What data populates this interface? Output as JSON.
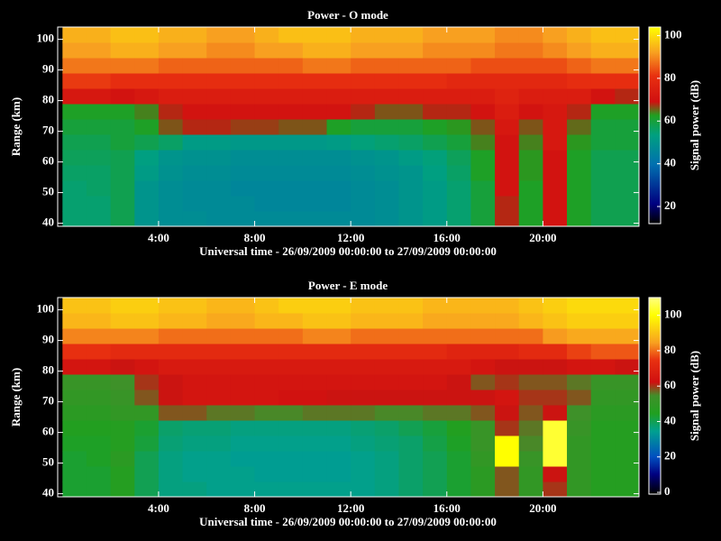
{
  "chart_data": [
    {
      "type": "heatmap",
      "title": "Power - O mode",
      "xlabel": "Universal time - 26/09/2009 00:00:00 to 27/09/2009 00:00:00",
      "ylabel": "Range (km)",
      "colorbar_label": "Signal power (dB)",
      "xlim": [
        -0.2,
        24
      ],
      "xticks": [
        {
          "value": 4,
          "label": "4:00"
        },
        {
          "value": 8,
          "label": "8:00"
        },
        {
          "value": 12,
          "label": "12:00"
        },
        {
          "value": 16,
          "label": "16:00"
        },
        {
          "value": 20,
          "label": "20:00"
        }
      ],
      "ylim": [
        39,
        104
      ],
      "yticks": [
        40,
        50,
        60,
        70,
        80,
        90,
        100
      ],
      "zlim": [
        12,
        104
      ],
      "zticks": [
        20,
        40,
        60,
        80,
        100
      ],
      "colorscale": [
        [
          0,
          "#000000"
        ],
        [
          0.1,
          "#000080"
        ],
        [
          0.3,
          "#0070b0"
        ],
        [
          0.45,
          "#00a080"
        ],
        [
          0.55,
          "#20a020"
        ],
        [
          0.62,
          "#d01010"
        ],
        [
          0.75,
          "#e83010"
        ],
        [
          0.87,
          "#f8a020"
        ],
        [
          1,
          "#ffff00"
        ]
      ],
      "x_edges": [
        0,
        1,
        2,
        3,
        4,
        5,
        6,
        7,
        8,
        9,
        10,
        11,
        12,
        13,
        14,
        15,
        16,
        17,
        18,
        19,
        20,
        21,
        22,
        23,
        24
      ],
      "y_edges": [
        39,
        44,
        49,
        54,
        59,
        64,
        69,
        74,
        79,
        84,
        89,
        94,
        99,
        104
      ],
      "z": [
        [
          55,
          55,
          58,
          50,
          48,
          48,
          47,
          47,
          47,
          47,
          47,
          47,
          47,
          48,
          50,
          52,
          55,
          60,
          68,
          62,
          70,
          62,
          58,
          58
        ],
        [
          55,
          55,
          58,
          50,
          48,
          47,
          47,
          47,
          46,
          46,
          46,
          46,
          47,
          48,
          50,
          52,
          55,
          60,
          68,
          62,
          70,
          62,
          58,
          58
        ],
        [
          55,
          56,
          58,
          50,
          48,
          47,
          47,
          46,
          46,
          46,
          46,
          46,
          47,
          48,
          50,
          52,
          55,
          60,
          70,
          62,
          70,
          62,
          58,
          58
        ],
        [
          56,
          56,
          58,
          52,
          49,
          48,
          48,
          47,
          47,
          47,
          47,
          47,
          48,
          49,
          50,
          53,
          56,
          62,
          70,
          63,
          70,
          62,
          58,
          58
        ],
        [
          57,
          57,
          58,
          53,
          50,
          49,
          49,
          48,
          48,
          48,
          48,
          48,
          49,
          50,
          52,
          54,
          57,
          62,
          70,
          63,
          70,
          62,
          58,
          58
        ],
        [
          58,
          58,
          60,
          58,
          56,
          52,
          52,
          51,
          51,
          51,
          51,
          52,
          54,
          55,
          56,
          58,
          60,
          64,
          70,
          64,
          72,
          63,
          60,
          60
        ],
        [
          60,
          60,
          60,
          62,
          66,
          68,
          68,
          67,
          67,
          66,
          66,
          62,
          60,
          60,
          60,
          62,
          63,
          66,
          72,
          66,
          72,
          65,
          60,
          60
        ],
        [
          62,
          62,
          62,
          64,
          68,
          70,
          70,
          70,
          70,
          70,
          70,
          70,
          68,
          66,
          66,
          68,
          68,
          70,
          74,
          70,
          72,
          68,
          62,
          62
        ],
        [
          72,
          72,
          70,
          72,
          74,
          74,
          74,
          74,
          74,
          74,
          74,
          74,
          74,
          74,
          74,
          74,
          74,
          74,
          76,
          74,
          74,
          74,
          70,
          68
        ],
        [
          82,
          82,
          80,
          80,
          80,
          80,
          80,
          80,
          80,
          80,
          80,
          80,
          80,
          80,
          80,
          80,
          78,
          78,
          78,
          78,
          78,
          80,
          80,
          80
        ],
        [
          88,
          88,
          88,
          88,
          86,
          86,
          86,
          86,
          86,
          86,
          88,
          88,
          86,
          86,
          86,
          86,
          86,
          84,
          84,
          84,
          84,
          86,
          88,
          88
        ],
        [
          92,
          92,
          94,
          94,
          92,
          92,
          90,
          90,
          92,
          92,
          94,
          94,
          92,
          92,
          92,
          90,
          90,
          90,
          88,
          88,
          90,
          92,
          94,
          94
        ],
        [
          94,
          94,
          96,
          96,
          94,
          94,
          92,
          92,
          94,
          96,
          96,
          96,
          94,
          94,
          94,
          92,
          92,
          92,
          90,
          90,
          92,
          94,
          96,
          96
        ]
      ]
    },
    {
      "type": "heatmap",
      "title": "Power - E mode",
      "xlabel": "Universal time - 26/09/2009 00:00:00 to 27/09/2009 00:00:00",
      "ylabel": "Range (km)",
      "colorbar_label": "Signal power (dB)",
      "xlim": [
        -0.2,
        24
      ],
      "xticks": [
        {
          "value": 4,
          "label": "4:00"
        },
        {
          "value": 8,
          "label": "8:00"
        },
        {
          "value": 12,
          "label": "12:00"
        },
        {
          "value": 16,
          "label": "16:00"
        },
        {
          "value": 20,
          "label": "20:00"
        }
      ],
      "ylim": [
        39,
        104
      ],
      "yticks": [
        40,
        50,
        60,
        70,
        80,
        90,
        100
      ],
      "zlim": [
        -1,
        110
      ],
      "zticks": [
        0,
        20,
        40,
        60,
        80,
        100
      ],
      "colorscale": [
        [
          0,
          "#000000"
        ],
        [
          0.1,
          "#000080"
        ],
        [
          0.19,
          "#0050c0"
        ],
        [
          0.32,
          "#00a090"
        ],
        [
          0.41,
          "#20a020"
        ],
        [
          0.5,
          "#40902a"
        ],
        [
          0.57,
          "#d01010"
        ],
        [
          0.68,
          "#e83010"
        ],
        [
          0.77,
          "#f8a020"
        ],
        [
          0.91,
          "#ffff00"
        ],
        [
          1,
          "#ffff80"
        ]
      ],
      "x_edges": [
        0,
        1,
        2,
        3,
        4,
        5,
        6,
        7,
        8,
        9,
        10,
        11,
        12,
        13,
        14,
        15,
        16,
        17,
        18,
        19,
        20,
        21,
        22,
        23,
        24
      ],
      "y_edges": [
        39,
        44,
        49,
        54,
        59,
        64,
        69,
        74,
        79,
        84,
        89,
        94,
        99,
        104
      ],
      "z": [
        [
          43,
          43,
          46,
          40,
          36,
          36,
          35,
          35,
          35,
          35,
          35,
          35,
          35,
          36,
          38,
          40,
          43,
          48,
          58,
          50,
          60,
          50,
          46,
          46
        ],
        [
          43,
          43,
          46,
          40,
          36,
          35,
          35,
          35,
          34,
          34,
          34,
          34,
          35,
          36,
          38,
          40,
          43,
          48,
          58,
          50,
          62,
          50,
          46,
          46
        ],
        [
          43,
          44,
          48,
          40,
          36,
          35,
          35,
          34,
          34,
          34,
          34,
          34,
          35,
          36,
          38,
          40,
          43,
          50,
          100,
          52,
          104,
          50,
          46,
          46
        ],
        [
          44,
          44,
          46,
          42,
          37,
          36,
          36,
          35,
          35,
          35,
          35,
          35,
          36,
          37,
          38,
          41,
          44,
          52,
          100,
          55,
          104,
          50,
          46,
          46
        ],
        [
          45,
          45,
          46,
          43,
          38,
          37,
          37,
          36,
          36,
          36,
          36,
          36,
          37,
          38,
          40,
          42,
          45,
          52,
          60,
          56,
          104,
          52,
          46,
          46
        ],
        [
          48,
          48,
          50,
          50,
          58,
          58,
          56,
          56,
          55,
          55,
          56,
          56,
          56,
          55,
          55,
          56,
          56,
          58,
          62,
          58,
          62,
          54,
          48,
          48
        ],
        [
          50,
          50,
          52,
          58,
          62,
          64,
          64,
          64,
          64,
          63,
          63,
          62,
          62,
          62,
          62,
          62,
          62,
          62,
          64,
          60,
          60,
          58,
          50,
          50
        ],
        [
          52,
          52,
          54,
          60,
          62,
          64,
          64,
          64,
          64,
          64,
          64,
          64,
          64,
          64,
          64,
          64,
          62,
          58,
          60,
          58,
          58,
          56,
          52,
          52
        ],
        [
          64,
          64,
          62,
          64,
          66,
          66,
          66,
          66,
          66,
          66,
          66,
          66,
          66,
          66,
          66,
          66,
          66,
          64,
          62,
          62,
          62,
          64,
          64,
          62
        ],
        [
          74,
          74,
          72,
          72,
          72,
          72,
          72,
          72,
          72,
          72,
          72,
          72,
          72,
          72,
          72,
          72,
          70,
          70,
          70,
          72,
          72,
          76,
          78,
          78
        ],
        [
          82,
          82,
          82,
          82,
          80,
          80,
          80,
          80,
          80,
          80,
          82,
          82,
          80,
          80,
          80,
          80,
          80,
          80,
          80,
          80,
          84,
          86,
          86,
          86
        ],
        [
          88,
          88,
          90,
          90,
          88,
          88,
          86,
          86,
          88,
          88,
          90,
          90,
          88,
          88,
          88,
          86,
          86,
          86,
          86,
          88,
          90,
          92,
          92,
          92
        ],
        [
          90,
          90,
          92,
          92,
          90,
          90,
          88,
          88,
          90,
          92,
          92,
          92,
          90,
          90,
          90,
          88,
          88,
          88,
          88,
          90,
          92,
          94,
          94,
          94
        ]
      ]
    }
  ]
}
